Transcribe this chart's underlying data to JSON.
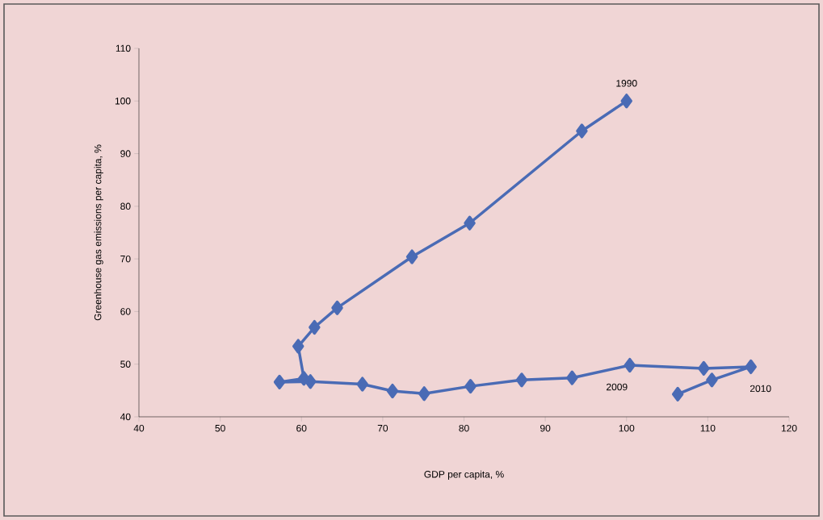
{
  "chart_data": {
    "type": "line",
    "xlabel": "GDP per capita, %",
    "ylabel": "Greenhouse gas emissions per capita, %",
    "series": [
      {
        "color": "#4a6bb5",
        "x": [
          100,
          94.5,
          80.7,
          73.6,
          64.4,
          61.6,
          59.6,
          60.3,
          57.3,
          61.1,
          67.5,
          71.2,
          75.1,
          80.8,
          87.1,
          93.3,
          100.4,
          109.5,
          115.3,
          110.5,
          106.3
        ],
        "values": [
          100,
          94.3,
          76.8,
          70.4,
          60.7,
          57.0,
          53.4,
          47.3,
          46.6,
          46.7,
          46.2,
          44.9,
          44.4,
          45.8,
          47.0,
          47.4,
          49.8,
          49.2,
          49.5,
          47.0,
          44.3
        ]
      }
    ],
    "xlim": [
      40,
      120
    ],
    "ylim": [
      40,
      110
    ],
    "xticks": [
      40,
      50,
      60,
      70,
      80,
      90,
      100,
      110,
      120
    ],
    "yticks": [
      40,
      50,
      60,
      70,
      80,
      90,
      100,
      110
    ],
    "marker": "diamond",
    "line_style": "solid",
    "annotations": [
      {
        "text": "1990",
        "x": 100,
        "y": 100
      },
      {
        "text": "2009",
        "x": 100.4,
        "y": 49.8
      },
      {
        "text": "2010",
        "x": 115.3,
        "y": 49.5
      }
    ]
  }
}
